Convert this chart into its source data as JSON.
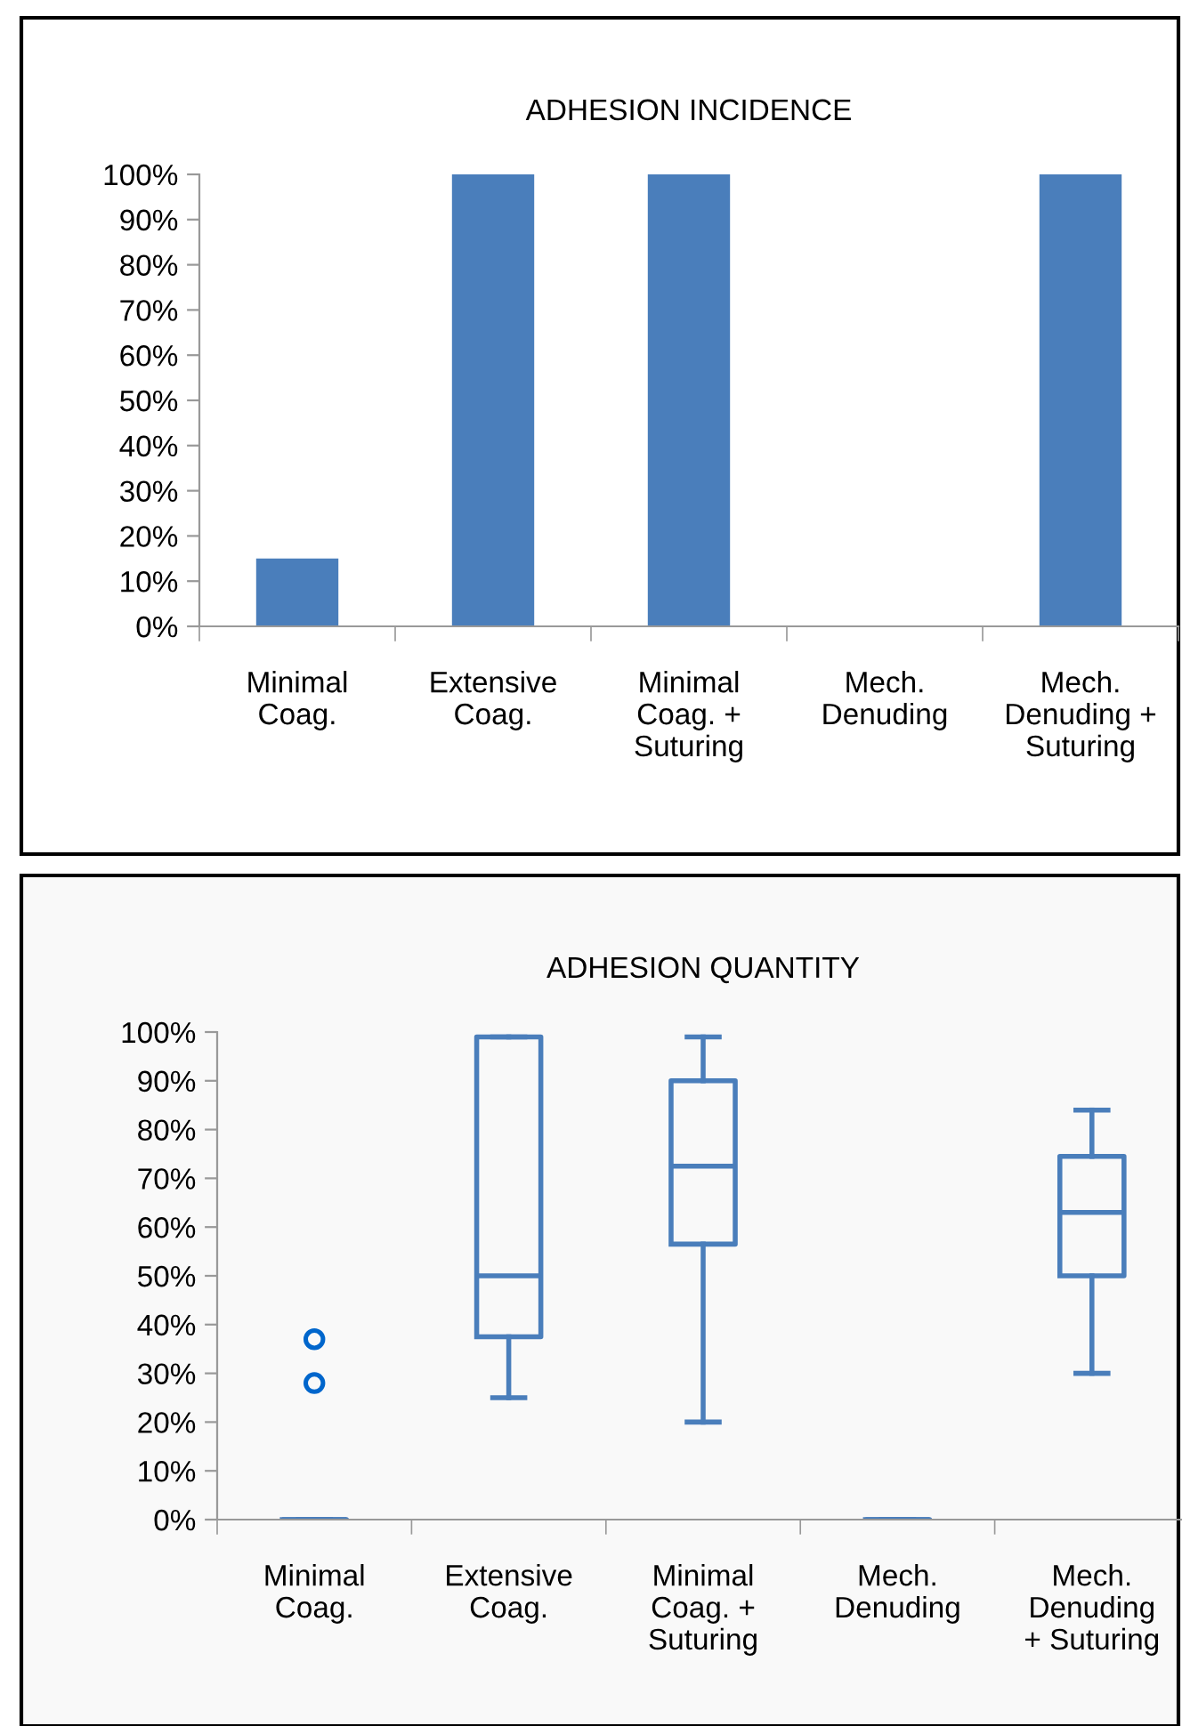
{
  "chart_data": [
    {
      "type": "bar",
      "title": "ADHESION INCIDENCE",
      "categories": [
        "Minimal\nCoag.",
        "Extensive\nCoag.",
        "Minimal\nCoag. +\nSuturing",
        "Mech.\nDenuding",
        "Mech.\nDenuding +\nSuturing"
      ],
      "values": [
        15,
        100,
        100,
        0,
        100
      ],
      "color": "#4a7ebb",
      "ylim": [
        0,
        100
      ],
      "yticks": [
        {
          "value": 0,
          "label": "0%"
        },
        {
          "value": 10,
          "label": "10%"
        },
        {
          "value": 20,
          "label": "20%"
        },
        {
          "value": 30,
          "label": "30%"
        },
        {
          "value": 40,
          "label": "40%"
        },
        {
          "value": 50,
          "label": "50%"
        },
        {
          "value": 60,
          "label": "60%"
        },
        {
          "value": 70,
          "label": "70%"
        },
        {
          "value": 80,
          "label": "80%"
        },
        {
          "value": 90,
          "label": "90%"
        },
        {
          "value": 100,
          "label": "100%"
        }
      ],
      "grid": false,
      "legend": false
    },
    {
      "type": "box",
      "title": "ADHESION QUANTITY",
      "categories": [
        "Minimal\nCoag.",
        "Extensive\nCoag.",
        "Minimal\nCoag. +\nSuturing",
        "Mech.\nDenuding",
        "Mech.\nDenuding\n+ Suturing"
      ],
      "color": "#4a7ebb",
      "boxes": [
        {
          "low": 0,
          "q1": 0,
          "median": 0,
          "q3": 0,
          "high": 0,
          "outliers": [
            37,
            28
          ]
        },
        {
          "low": 25,
          "q1": 37.5,
          "median": 50,
          "q3": 99,
          "high": 99
        },
        {
          "low": 20,
          "q1": 56.5,
          "median": 72.5,
          "q3": 90,
          "high": 99
        },
        {
          "low": 0,
          "q1": 0,
          "median": 0,
          "q3": 0,
          "high": 0
        },
        {
          "low": 30,
          "q1": 50,
          "median": 63,
          "q3": 74.5,
          "high": 84
        }
      ],
      "ylim": [
        0,
        100
      ],
      "yticks": [
        {
          "value": 0,
          "label": "0%"
        },
        {
          "value": 10,
          "label": "10%"
        },
        {
          "value": 20,
          "label": "20%"
        },
        {
          "value": 30,
          "label": "30%"
        },
        {
          "value": 40,
          "label": "40%"
        },
        {
          "value": 50,
          "label": "50%"
        },
        {
          "value": 60,
          "label": "60%"
        },
        {
          "value": 70,
          "label": "70%"
        },
        {
          "value": 80,
          "label": "80%"
        },
        {
          "value": 90,
          "label": "90%"
        },
        {
          "value": 100,
          "label": "100%"
        }
      ],
      "grid": false,
      "legend": false
    }
  ]
}
